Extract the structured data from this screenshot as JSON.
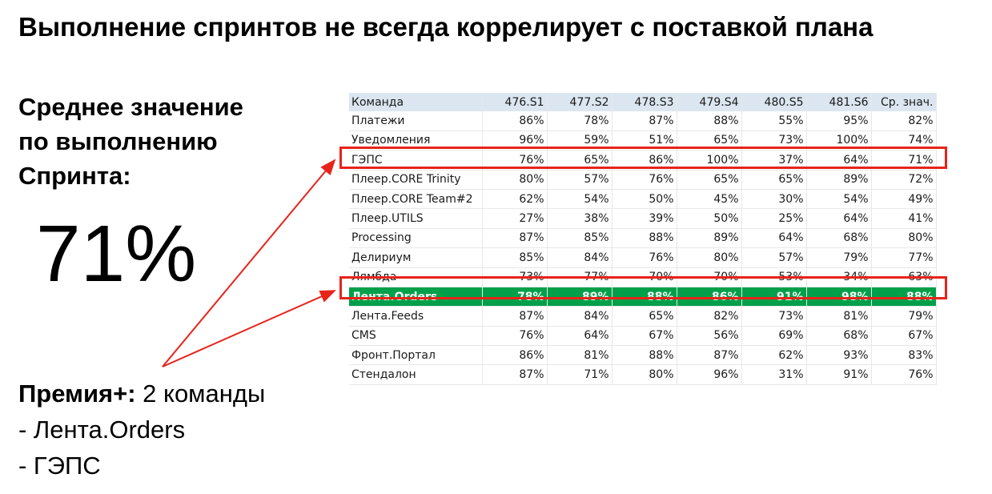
{
  "title": "Выполнение спринтов не всегда коррелирует с поставкой плана",
  "avg": {
    "label_lines": [
      "Среднее значение",
      "по выполнению",
      "Спринта:"
    ],
    "value": "71%"
  },
  "premia": {
    "label": "Премия+:",
    "count": " 2 команды",
    "items": [
      "- Лента.Orders",
      "- ГЭПС"
    ]
  },
  "colors": {
    "highlight_row": "#00a04a",
    "frame": "#e8231a",
    "header_bg": "#dce6f1"
  },
  "table": {
    "headers": [
      "Команда",
      "476.S1",
      "477.S2",
      "478.S3",
      "479.S4",
      "480.S5",
      "481.S6",
      "Ср. знач."
    ],
    "rows": [
      [
        "Платежи",
        "86%",
        "78%",
        "87%",
        "88%",
        "55%",
        "95%",
        "82%"
      ],
      [
        "Уведомления",
        "96%",
        "59%",
        "51%",
        "65%",
        "73%",
        "100%",
        "74%"
      ],
      [
        "ГЭПС",
        "76%",
        "65%",
        "86%",
        "100%",
        "37%",
        "64%",
        "71%"
      ],
      [
        "Плеер.CORE Trinity",
        "80%",
        "57%",
        "76%",
        "65%",
        "65%",
        "89%",
        "72%"
      ],
      [
        "Плеер.CORE Team#2",
        "62%",
        "54%",
        "50%",
        "45%",
        "30%",
        "54%",
        "49%"
      ],
      [
        "Плеер.UTILS",
        "27%",
        "38%",
        "39%",
        "50%",
        "25%",
        "64%",
        "41%"
      ],
      [
        "Processing",
        "87%",
        "85%",
        "88%",
        "89%",
        "64%",
        "68%",
        "80%"
      ],
      [
        "Делириум",
        "85%",
        "84%",
        "76%",
        "80%",
        "57%",
        "79%",
        "77%"
      ],
      [
        "Лямбда",
        "73%",
        "77%",
        "70%",
        "70%",
        "53%",
        "34%",
        "63%"
      ],
      [
        "Лента.Orders",
        "78%",
        "89%",
        "88%",
        "86%",
        "91%",
        "98%",
        "88%"
      ],
      [
        "Лента.Feeds",
        "87%",
        "84%",
        "65%",
        "82%",
        "73%",
        "81%",
        "79%"
      ],
      [
        "CMS",
        "76%",
        "64%",
        "67%",
        "56%",
        "69%",
        "68%",
        "67%"
      ],
      [
        "Фронт.Портал",
        "86%",
        "81%",
        "88%",
        "87%",
        "62%",
        "93%",
        "83%"
      ],
      [
        "Стендалон",
        "87%",
        "71%",
        "80%",
        "96%",
        "31%",
        "91%",
        "76%"
      ]
    ]
  }
}
